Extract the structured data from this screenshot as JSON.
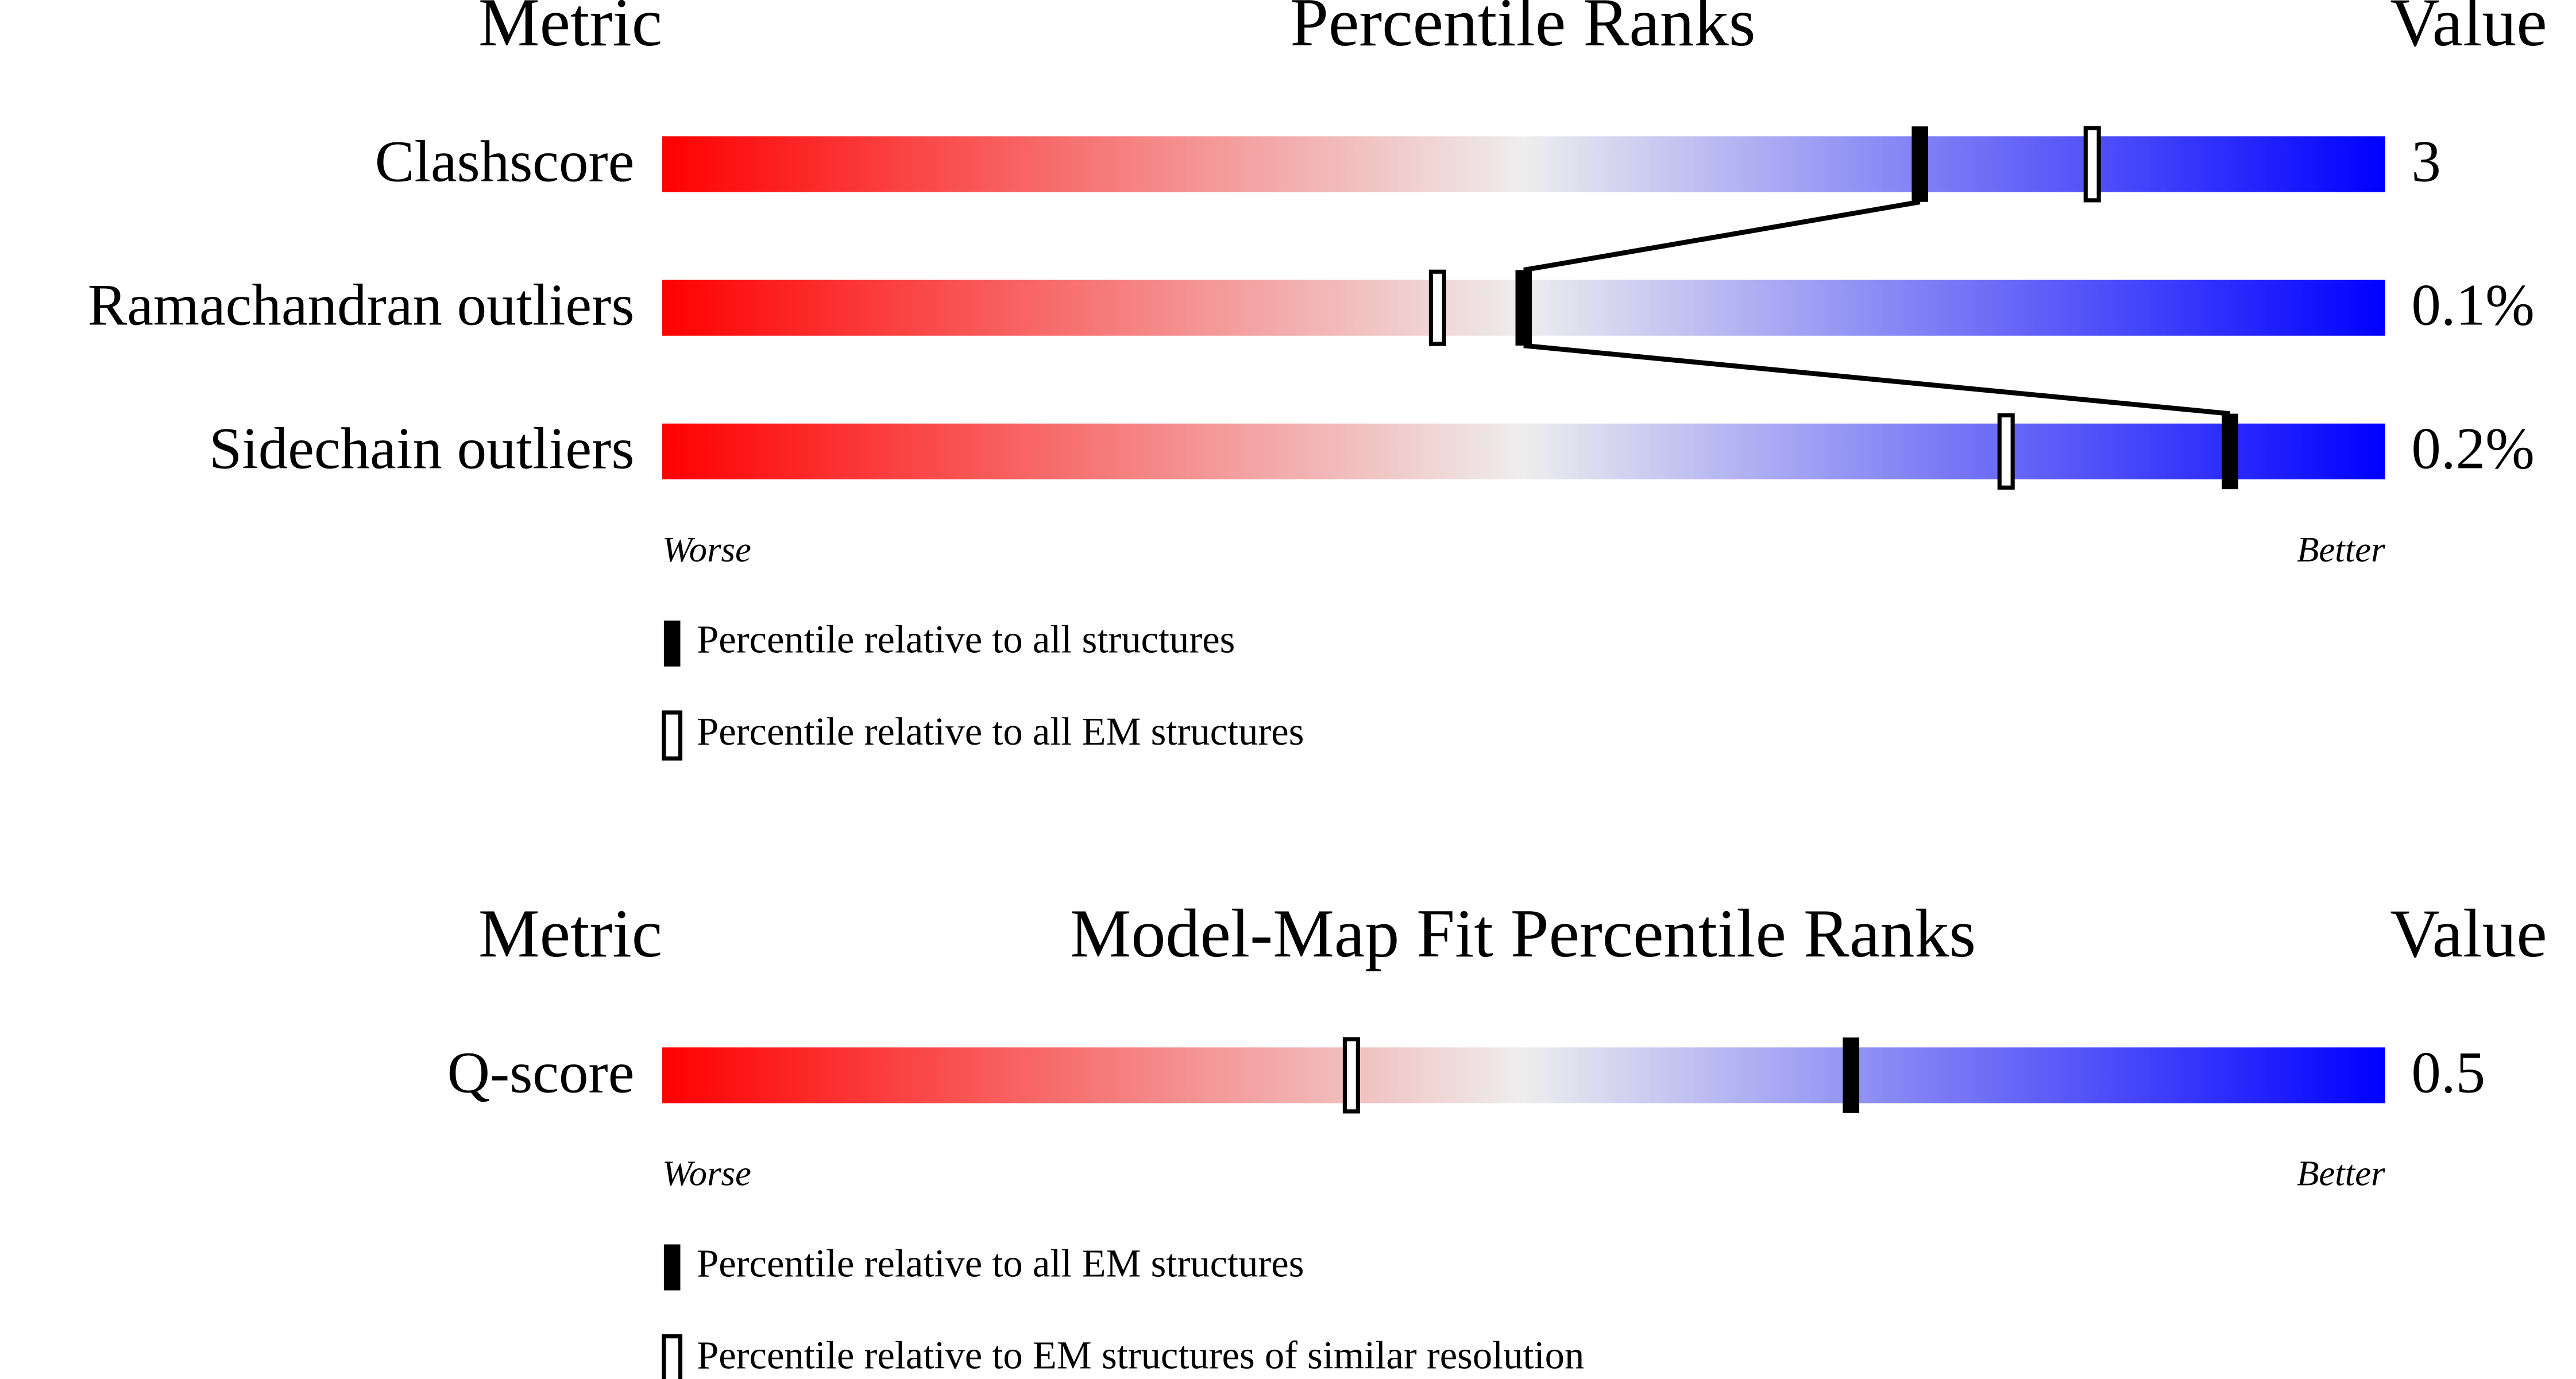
{
  "chart_data": [
    {
      "type": "percentile",
      "header_metric": "Metric",
      "title": "Percentile Ranks",
      "header_value": "Value",
      "categories": [
        "Clashscore",
        "Ramachandran outliers",
        "Sidechain outliers"
      ],
      "metric_values": [
        "3",
        "0.1%",
        "0.2%"
      ],
      "xlim": [
        0,
        100
      ],
      "x_left_label": "Worse",
      "x_right_label": "Better",
      "connect_filled": true,
      "series": [
        {
          "name": "Percentile relative to all structures",
          "color": "#000000",
          "style": "filled",
          "values": [
            73,
            50,
            91
          ]
        },
        {
          "name": "Percentile relative to all EM structures",
          "color": "#000000",
          "style": "hollow",
          "values": [
            83,
            45,
            78
          ]
        }
      ]
    },
    {
      "type": "percentile",
      "header_metric": "Metric",
      "title": "Model-Map Fit Percentile Ranks",
      "header_value": "Value",
      "categories": [
        "Q-score"
      ],
      "metric_values": [
        "0.5"
      ],
      "xlim": [
        0,
        100
      ],
      "x_left_label": "Worse",
      "x_right_label": "Better",
      "connect_filled": true,
      "series": [
        {
          "name": "Percentile relative to all EM structures",
          "color": "#000000",
          "style": "filled",
          "values": [
            69
          ]
        },
        {
          "name": "Percentile relative to EM structures of similar resolution",
          "color": "#000000",
          "style": "hollow",
          "values": [
            40
          ]
        }
      ]
    }
  ]
}
